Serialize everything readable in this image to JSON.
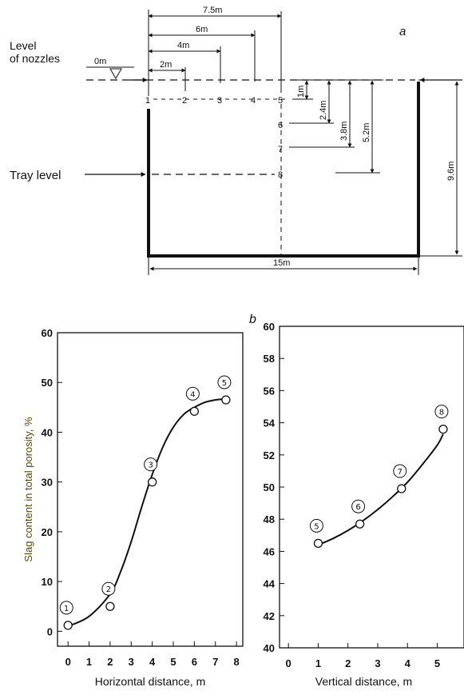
{
  "diagram": {
    "panel_label": "a",
    "nozzle_label_line1": "Level",
    "nozzle_label_line2": "of nozzles",
    "zero_label": "0m",
    "tray_label": "Tray level",
    "horizontal_dims": [
      "7.5m",
      "6m",
      "4m",
      "2m"
    ],
    "vertical_dims": [
      "1m",
      "2.4m",
      "3.8m",
      "5.2m"
    ],
    "height_dim": "9.6m",
    "width_dim": "15m",
    "points": [
      "1",
      "2",
      "3",
      "4",
      "5",
      "6",
      "7",
      "8"
    ]
  },
  "panel_b_label": "b",
  "chart_data": [
    {
      "type": "scatter",
      "xlabel": "Horizontal distance, m",
      "ylabel": "Slag content in total porosity, %",
      "xlim": [
        -0.5,
        8.3
      ],
      "ylim": [
        -3,
        60
      ],
      "xticks": [
        0,
        1,
        2,
        3,
        4,
        5,
        6,
        7,
        8
      ],
      "yticks": [
        0,
        10,
        20,
        30,
        40,
        50,
        60
      ],
      "points": [
        {
          "label": "1",
          "x": 0,
          "y": 1.2
        },
        {
          "label": "2",
          "x": 2,
          "y": 5
        },
        {
          "label": "3",
          "x": 4,
          "y": 30
        },
        {
          "label": "4",
          "x": 6,
          "y": 44.2
        },
        {
          "label": "5",
          "x": 7.5,
          "y": 46.5
        }
      ],
      "fit_curve": {
        "x": [
          0,
          1,
          2,
          2.5,
          3,
          3.5,
          4,
          4.5,
          5,
          5.5,
          6,
          6.5,
          7,
          7.5
        ],
        "y": [
          1,
          3,
          7.5,
          12,
          18,
          25,
          31.5,
          37,
          41,
          43.6,
          45,
          46,
          46.5,
          46.7
        ]
      }
    },
    {
      "type": "scatter",
      "xlabel": "Vertical distance, m",
      "ylabel": "",
      "xlim": [
        -0.3,
        5.9
      ],
      "ylim": [
        40,
        60
      ],
      "xticks": [
        0,
        1,
        2,
        3,
        4,
        5
      ],
      "yticks": [
        40,
        42,
        44,
        46,
        48,
        50,
        52,
        54,
        56,
        58,
        60
      ],
      "points": [
        {
          "label": "5",
          "x": 1,
          "y": 46.5
        },
        {
          "label": "6",
          "x": 2.4,
          "y": 47.7
        },
        {
          "label": "7",
          "x": 3.8,
          "y": 49.9
        },
        {
          "label": "8",
          "x": 5.2,
          "y": 53.6
        }
      ],
      "fit_curve": {
        "x": [
          1,
          1.5,
          2,
          2.5,
          3,
          3.5,
          4,
          4.5,
          5,
          5.2
        ],
        "y": [
          46.4,
          46.8,
          47.3,
          47.9,
          48.6,
          49.4,
          50.3,
          51.4,
          52.6,
          53.3
        ]
      }
    }
  ]
}
